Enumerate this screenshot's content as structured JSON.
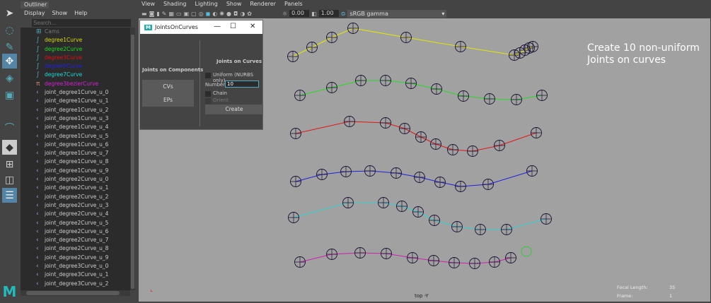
{
  "outliner": {
    "tab": "Outliner",
    "menu": [
      "Display",
      "Show",
      "Help"
    ],
    "search_placeholder": "Search...",
    "items": [
      {
        "label": "Cams",
        "color": "#777",
        "icon": "camera-group-icon"
      },
      {
        "label": "degree1Curve",
        "color": "#d8d800",
        "icon": "curve-icon"
      },
      {
        "label": "degree2Curve",
        "color": "#1ed81e",
        "icon": "curve-icon"
      },
      {
        "label": "degree3Curve",
        "color": "#e01010",
        "icon": "curve-icon"
      },
      {
        "label": "degree5Curve",
        "color": "#2020e8",
        "icon": "curve-icon"
      },
      {
        "label": "degree7Curve",
        "color": "#20d8d8",
        "icon": "curve-icon"
      },
      {
        "label": "degree3bezierCurve",
        "color": "#d820d8",
        "icon": "bezier-icon"
      },
      {
        "label": "joint_degree1Curve_u_0"
      },
      {
        "label": "joint_degree1Curve_u_1"
      },
      {
        "label": "joint_degree1Curve_u_2"
      },
      {
        "label": "joint_degree1Curve_u_3"
      },
      {
        "label": "joint_degree1Curve_u_4"
      },
      {
        "label": "joint_degree1Curve_u_5"
      },
      {
        "label": "joint_degree1Curve_u_6"
      },
      {
        "label": "joint_degree1Curve_u_7"
      },
      {
        "label": "joint_degree1Curve_u_8"
      },
      {
        "label": "joint_degree1Curve_u_9"
      },
      {
        "label": "joint_degree2Curve_u_0"
      },
      {
        "label": "joint_degree2Curve_u_1"
      },
      {
        "label": "joint_degree2Curve_u_2"
      },
      {
        "label": "joint_degree2Curve_u_3"
      },
      {
        "label": "joint_degree2Curve_u_4"
      },
      {
        "label": "joint_degree2Curve_u_5"
      },
      {
        "label": "joint_degree2Curve_u_6"
      },
      {
        "label": "joint_degree2Curve_u_7"
      },
      {
        "label": "joint_degree2Curve_u_8"
      },
      {
        "label": "joint_degree2Curve_u_9"
      },
      {
        "label": "joint_degree3Curve_u_0"
      },
      {
        "label": "joint_degree3Curve_u_1"
      },
      {
        "label": "joint_degree3Curve_u_2"
      }
    ]
  },
  "viewport": {
    "menu": [
      "View",
      "Shading",
      "Lighting",
      "Show",
      "Renderer",
      "Panels"
    ],
    "exposure": "0.00",
    "gamma": "1.00",
    "color_space": "sRGB gamma",
    "camera_label": "top -Y",
    "focal_length_label": "Focal Length:",
    "focal_length": "35",
    "frame_label": "Frame:",
    "frame": "1",
    "annotation": [
      "Create 10 non-uniform",
      "Joints on curves"
    ],
    "curve_colors": [
      "#e6e600",
      "#22dd22",
      "#e01818",
      "#2020e0",
      "#30d0d0",
      "#d020b0"
    ]
  },
  "dialog": {
    "title": "JointsOnCurves",
    "left_heading": "Joints on Components",
    "cvs": "CVs",
    "eps": "EPs",
    "right_heading": "Joints on Curves",
    "uniform": "Uniform (NURBS only)",
    "number_label": "Number",
    "number": "10",
    "chain": "Chain",
    "orient": "Orient",
    "create": "Create"
  }
}
